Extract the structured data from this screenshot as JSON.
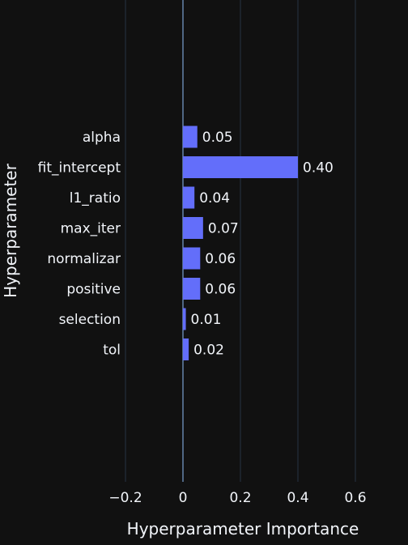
{
  "chart_data": {
    "type": "bar",
    "orientation": "horizontal",
    "categories": [
      "alpha",
      "fit_intercept",
      "l1_ratio",
      "max_iter",
      "normalizar",
      "positive",
      "selection",
      "tol"
    ],
    "values": [
      0.05,
      0.4,
      0.04,
      0.07,
      0.06,
      0.06,
      0.01,
      0.02
    ],
    "value_labels": [
      "0.05",
      "0.40",
      "0.04",
      "0.07",
      "0.06",
      "0.06",
      "0.01",
      "0.02"
    ],
    "xlabel": "Hyperparameter Importance",
    "ylabel": "Hyperparameter",
    "xlim": [
      -0.25,
      0.65
    ],
    "x_ticks": [
      -0.2,
      0,
      0.2,
      0.4,
      0.6
    ],
    "x_tick_labels": [
      "−0.2",
      "0",
      "0.2",
      "0.4",
      "0.6"
    ],
    "grid": true,
    "colors": {
      "bar": "#636efa",
      "background": "#111111",
      "grid": "#283442",
      "zeroline": "#506784",
      "text": "#f2f5fa"
    }
  }
}
